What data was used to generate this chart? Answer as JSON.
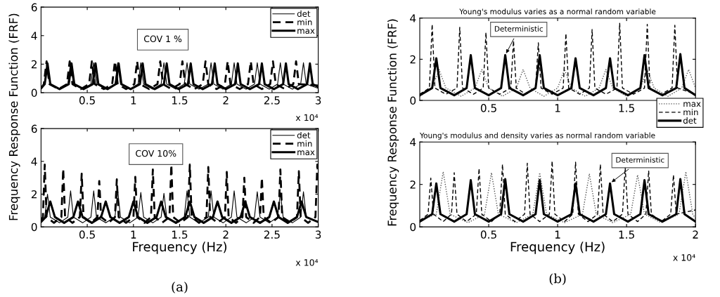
{
  "chart_data": [
    {
      "type": "line",
      "ylabel": "Frequency Response Function (FRF)",
      "xlim": [
        0,
        3
      ],
      "ylim": [
        0,
        6
      ],
      "xticks": [
        0.5,
        1,
        1.5,
        2,
        2.5,
        3
      ],
      "yticks": [
        0,
        2,
        4,
        6
      ],
      "grid": false,
      "legend": "top right",
      "marker": "none",
      "annotations": [
        "COV 1 %",
        "x 10⁴"
      ],
      "series": [
        {
          "name": "det",
          "color": "#000000",
          "line_style": "solid",
          "x": [
            0,
            0.04,
            0.07,
            0.1,
            0.2,
            0.29,
            0.32,
            0.35,
            0.45,
            0.54,
            0.57,
            0.6,
            0.7,
            0.8,
            0.83,
            0.86,
            0.96,
            1.05,
            1.08,
            1.11,
            1.21,
            1.3,
            1.33,
            1.36,
            1.46,
            1.55,
            1.58,
            1.61,
            1.71,
            1.81,
            1.84,
            1.87,
            1.97,
            2.06,
            2.09,
            2.12,
            2.22,
            2.31,
            2.34,
            2.37,
            2.47,
            2.56,
            2.59,
            2.62,
            2.72,
            2.81,
            2.84,
            2.87,
            3
          ],
          "values": [
            0.3,
            0.6,
            2.1,
            0.6,
            0.25,
            0.6,
            2.1,
            0.6,
            0.25,
            0.6,
            2.1,
            0.6,
            0.25,
            0.6,
            2.1,
            0.6,
            0.25,
            0.6,
            2.1,
            0.6,
            0.25,
            0.6,
            2.1,
            0.6,
            0.25,
            0.6,
            2.1,
            0.6,
            0.25,
            0.6,
            2.1,
            0.6,
            0.25,
            0.6,
            2.1,
            0.6,
            0.25,
            0.6,
            2.1,
            0.6,
            0.25,
            0.6,
            2.1,
            0.6,
            0.25,
            0.6,
            2.1,
            0.6,
            0.3
          ]
        },
        {
          "name": "min",
          "color": "#000000",
          "line_style": "dashed",
          "x": [
            0,
            0.03,
            0.06,
            0.09,
            0.19,
            0.28,
            0.31,
            0.34,
            0.43,
            0.52,
            0.55,
            0.58,
            0.68,
            0.77,
            0.8,
            0.83,
            0.92,
            1.01,
            1.04,
            1.07,
            1.17,
            1.26,
            1.29,
            1.32,
            1.41,
            1.5,
            1.53,
            1.56,
            1.66,
            1.75,
            1.78,
            1.81,
            1.9,
            1.99,
            2.02,
            2.05,
            2.15,
            2.24,
            2.27,
            2.3,
            2.39,
            2.48,
            2.51,
            2.54,
            2.64,
            2.73,
            2.76,
            2.79,
            3
          ],
          "values": [
            0.3,
            0.6,
            2.2,
            0.6,
            0.25,
            0.6,
            2.2,
            0.6,
            0.25,
            0.6,
            2.2,
            0.6,
            0.25,
            0.6,
            2.2,
            0.6,
            0.25,
            0.6,
            2.2,
            0.6,
            0.25,
            0.6,
            2.2,
            0.6,
            0.25,
            0.6,
            2.2,
            0.6,
            0.25,
            0.6,
            2.2,
            0.6,
            0.25,
            0.6,
            2.2,
            0.6,
            0.25,
            0.6,
            2.2,
            0.6,
            0.25,
            0.6,
            2.2,
            0.6,
            0.25,
            0.6,
            2.2,
            0.6,
            0.5
          ]
        },
        {
          "name": "max",
          "color": "#000000",
          "line_style": "solid",
          "x": [
            0,
            0.04,
            0.07,
            0.1,
            0.2,
            0.3,
            0.33,
            0.36,
            0.46,
            0.56,
            0.59,
            0.62,
            0.72,
            0.81,
            0.84,
            0.87,
            0.97,
            1.07,
            1.1,
            1.13,
            1.23,
            1.33,
            1.36,
            1.39,
            1.49,
            1.59,
            1.62,
            1.65,
            1.75,
            1.85,
            1.88,
            1.91,
            2.0,
            2.1,
            2.13,
            2.16,
            2.26,
            2.36,
            2.39,
            2.42,
            2.52,
            2.62,
            2.65,
            2.68,
            2.78,
            2.88,
            2.91,
            2.94,
            3
          ],
          "values": [
            0.3,
            0.6,
            2.05,
            0.6,
            0.25,
            0.6,
            2.05,
            0.6,
            0.25,
            0.6,
            2.05,
            0.6,
            0.25,
            0.6,
            2.05,
            0.6,
            0.25,
            0.6,
            2.05,
            0.6,
            0.25,
            0.6,
            2.05,
            0.6,
            0.25,
            0.6,
            2.05,
            0.6,
            0.25,
            0.6,
            2.05,
            0.6,
            0.25,
            0.6,
            2.05,
            0.6,
            0.25,
            0.6,
            2.05,
            0.6,
            0.25,
            0.6,
            2.05,
            0.6,
            0.25,
            0.6,
            2.05,
            0.6,
            0.4
          ]
        }
      ]
    },
    {
      "type": "line",
      "xlabel": "Frequency (Hz)",
      "xlim": [
        0,
        3
      ],
      "ylim": [
        0,
        6
      ],
      "xticks": [
        0.5,
        1,
        1.5,
        2,
        2.5,
        3
      ],
      "yticks": [
        0,
        2,
        4,
        6
      ],
      "grid": false,
      "legend": "top right",
      "marker": "none",
      "annotations": [
        "COV 10%",
        "x 10⁴",
        "(a)"
      ],
      "series": [
        {
          "name": "det",
          "color": "#000000",
          "line_style": "solid",
          "x": [
            0,
            0.04,
            0.07,
            0.1,
            0.2,
            0.29,
            0.32,
            0.35,
            0.45,
            0.54,
            0.57,
            0.6,
            0.7,
            0.8,
            0.83,
            0.86,
            0.96,
            1.05,
            1.08,
            1.11,
            1.21,
            1.3,
            1.33,
            1.36,
            1.46,
            1.55,
            1.58,
            1.61,
            1.71,
            1.81,
            1.84,
            1.87,
            1.97,
            2.06,
            2.09,
            2.12,
            2.22,
            2.31,
            2.34,
            2.37,
            2.47,
            2.56,
            2.59,
            2.62,
            2.72,
            2.81,
            2.84,
            2.87,
            3
          ],
          "values": [
            0.3,
            0.6,
            2.0,
            0.6,
            0.25,
            0.6,
            2.2,
            0.6,
            0.25,
            0.6,
            2.2,
            0.6,
            0.25,
            0.6,
            2.2,
            0.6,
            0.25,
            0.6,
            2.1,
            0.6,
            0.25,
            0.6,
            2.05,
            0.6,
            0.25,
            0.6,
            2.2,
            0.6,
            0.25,
            0.6,
            2.2,
            0.6,
            0.25,
            0.6,
            2.2,
            0.6,
            0.25,
            0.6,
            2.15,
            0.6,
            0.25,
            0.6,
            2.1,
            0.6,
            0.25,
            0.6,
            2.15,
            0.6,
            0.3
          ]
        },
        {
          "name": "min",
          "color": "#000000",
          "line_style": "dashed",
          "x": [
            0,
            0.02,
            0.04,
            0.06,
            0.14,
            0.22,
            0.24,
            0.26,
            0.34,
            0.42,
            0.44,
            0.46,
            0.54,
            0.61,
            0.63,
            0.65,
            0.73,
            0.8,
            0.82,
            0.84,
            0.92,
            1.0,
            1.02,
            1.04,
            1.12,
            1.19,
            1.21,
            1.23,
            1.31,
            1.39,
            1.41,
            1.43,
            1.51,
            1.59,
            1.61,
            1.63,
            1.71,
            1.79,
            1.81,
            1.83,
            1.91,
            1.99,
            2.01,
            2.03,
            2.11,
            2.18,
            2.2,
            2.22,
            2.3,
            2.37,
            2.39,
            2.41,
            2.49,
            2.57,
            2.59,
            2.61,
            2.69,
            2.77,
            2.79,
            2.81,
            2.89,
            2.97,
            2.99,
            3
          ],
          "values": [
            0.4,
            0.6,
            3.8,
            0.6,
            0.25,
            0.6,
            3.55,
            0.6,
            0.25,
            0.6,
            3.25,
            0.6,
            0.25,
            0.6,
            2.8,
            0.6,
            0.25,
            0.6,
            2.9,
            0.6,
            0.25,
            0.6,
            3.05,
            0.6,
            0.25,
            0.6,
            3.5,
            0.6,
            0.25,
            0.6,
            3.8,
            0.6,
            0.25,
            0.6,
            3.8,
            0.6,
            0.25,
            0.6,
            3.65,
            0.6,
            0.25,
            0.6,
            3.35,
            0.6,
            0.25,
            0.6,
            3.0,
            0.6,
            0.25,
            0.6,
            3.0,
            0.6,
            0.25,
            0.6,
            3.5,
            0.6,
            0.25,
            0.6,
            3.4,
            0.6,
            0.25,
            0.6,
            3.8,
            3.0
          ]
        },
        {
          "name": "max",
          "color": "#000000",
          "line_style": "solid",
          "x": [
            0,
            0.05,
            0.1,
            0.15,
            0.25,
            0.35,
            0.4,
            0.45,
            0.55,
            0.65,
            0.7,
            0.75,
            0.85,
            0.95,
            1.0,
            1.05,
            1.15,
            1.25,
            1.3,
            1.35,
            1.46,
            1.56,
            1.61,
            1.66,
            1.76,
            1.86,
            1.91,
            1.96,
            2.06,
            2.16,
            2.21,
            2.26,
            2.37,
            2.47,
            2.52,
            2.57,
            2.67,
            2.77,
            2.82,
            2.87,
            3
          ],
          "values": [
            0.3,
            0.6,
            1.55,
            0.6,
            0.25,
            0.6,
            1.55,
            0.6,
            0.25,
            0.6,
            1.55,
            0.6,
            0.25,
            0.6,
            1.55,
            0.6,
            0.25,
            0.6,
            1.55,
            0.6,
            0.25,
            0.6,
            1.55,
            0.6,
            0.25,
            0.6,
            1.55,
            0.6,
            0.25,
            0.6,
            1.55,
            0.6,
            0.25,
            0.6,
            1.55,
            0.6,
            0.25,
            0.6,
            1.55,
            0.6,
            0.3
          ]
        }
      ]
    },
    {
      "type": "line",
      "title": "Young's modulus varies as a normal random variable",
      "ylabel": "Frequency Response Function (FRF)",
      "xlim": [
        0,
        2
      ],
      "ylim": [
        0,
        4
      ],
      "xticks": [
        0.5,
        1,
        1.5
      ],
      "yticks": [
        0,
        2,
        4
      ],
      "grid": false,
      "legend": "right",
      "marker": "none",
      "annotations": [
        {
          "text": "Deterministic",
          "x": 0.62,
          "y": 2.2
        }
      ],
      "series": [
        {
          "name": "max",
          "color": "#555555",
          "line_style": "dotted",
          "x": [
            0,
            0.09,
            0.14,
            0.19,
            0.3,
            0.4,
            0.45,
            0.5,
            0.6,
            0.7,
            0.75,
            0.8,
            0.9,
            1.0,
            1.05,
            1.1,
            1.2,
            1.3,
            1.35,
            1.4,
            1.5,
            1.6,
            1.65,
            1.7,
            1.8,
            1.9,
            1.95,
            2
          ],
          "values": [
            0.2,
            0.6,
            1.5,
            0.6,
            0.2,
            0.6,
            1.5,
            0.6,
            0.2,
            0.6,
            1.5,
            0.6,
            0.2,
            0.6,
            1.5,
            0.6,
            0.2,
            0.6,
            1.5,
            0.6,
            0.2,
            0.6,
            1.5,
            0.6,
            0.2,
            0.6,
            1.5,
            0.6
          ]
        },
        {
          "name": "min",
          "color": "#000000",
          "line_style": "dashed",
          "x": [
            0,
            0.07,
            0.09,
            0.11,
            0.19,
            0.27,
            0.29,
            0.31,
            0.39,
            0.46,
            0.48,
            0.5,
            0.58,
            0.66,
            0.68,
            0.7,
            0.77,
            0.84,
            0.86,
            0.88,
            0.96,
            1.04,
            1.06,
            1.08,
            1.16,
            1.23,
            1.25,
            1.27,
            1.35,
            1.43,
            1.45,
            1.47,
            1.55,
            1.63,
            1.65,
            1.67,
            1.75,
            1.83,
            1.85,
            1.87,
            2
          ],
          "values": [
            0.3,
            0.6,
            3.7,
            0.6,
            0.3,
            0.6,
            3.55,
            0.6,
            0.3,
            0.6,
            3.3,
            0.6,
            0.3,
            0.6,
            2.9,
            0.6,
            0.3,
            0.6,
            2.8,
            0.6,
            0.3,
            0.6,
            3.25,
            0.6,
            0.3,
            0.6,
            3.45,
            0.6,
            0.3,
            0.6,
            3.75,
            0.6,
            0.3,
            0.6,
            3.7,
            0.6,
            0.3,
            0.6,
            3.65,
            0.6,
            0.3
          ]
        },
        {
          "name": "det",
          "color": "#000000",
          "line_style": "solid",
          "x": [
            0,
            0.09,
            0.12,
            0.15,
            0.25,
            0.34,
            0.37,
            0.4,
            0.5,
            0.59,
            0.62,
            0.65,
            0.75,
            0.84,
            0.87,
            0.9,
            1.0,
            1.1,
            1.13,
            1.16,
            1.26,
            1.35,
            1.38,
            1.41,
            1.51,
            1.6,
            1.63,
            1.66,
            1.76,
            1.86,
            1.89,
            1.92,
            2
          ],
          "values": [
            0.25,
            0.6,
            2.05,
            0.6,
            0.25,
            0.6,
            2.2,
            0.6,
            0.25,
            0.6,
            2.2,
            0.6,
            0.25,
            0.6,
            2.2,
            0.6,
            0.25,
            0.6,
            2.05,
            0.6,
            0.25,
            0.6,
            2.05,
            0.6,
            0.25,
            0.6,
            2.2,
            0.6,
            0.25,
            0.6,
            2.25,
            0.6,
            0.25
          ]
        }
      ]
    },
    {
      "type": "line",
      "title": "Young's modulus and density varies as normal random variable",
      "xlabel": "Frequency (Hz)",
      "xlim": [
        0,
        2
      ],
      "ylim": [
        0,
        4
      ],
      "xticks": [
        0.5,
        1,
        1.5,
        2
      ],
      "yticks": [
        0,
        2,
        4
      ],
      "grid": false,
      "marker": "none",
      "annotations": [
        {
          "text": "Deterministic",
          "x": 1.38,
          "y": 2.05
        },
        "x 10⁴",
        "(b)"
      ],
      "series": [
        {
          "color": "#555555",
          "line_style": "dotted",
          "x": [
            0,
            0.12,
            0.17,
            0.22,
            0.35,
            0.47,
            0.52,
            0.57,
            0.7,
            0.82,
            0.87,
            0.92,
            1.05,
            1.18,
            1.23,
            1.28,
            1.4,
            1.53,
            1.58,
            1.63,
            1.75,
            1.88,
            1.93,
            1.98,
            2
          ],
          "values": [
            0.3,
            0.6,
            2.6,
            0.6,
            0.2,
            0.6,
            2.55,
            0.6,
            0.2,
            0.6,
            2.55,
            0.6,
            0.2,
            0.6,
            2.5,
            0.6,
            0.2,
            0.6,
            2.45,
            0.6,
            0.2,
            0.6,
            2.6,
            0.6,
            0.4
          ]
        },
        {
          "color": "#000000",
          "line_style": "dashed",
          "x": [
            0,
            0.06,
            0.08,
            0.1,
            0.17,
            0.23,
            0.25,
            0.27,
            0.34,
            0.41,
            0.43,
            0.45,
            0.52,
            0.58,
            0.6,
            0.62,
            0.69,
            0.76,
            0.78,
            0.8,
            0.87,
            0.94,
            0.96,
            0.98,
            1.05,
            1.11,
            1.13,
            1.15,
            1.22,
            1.29,
            1.31,
            1.33,
            1.4,
            1.47,
            1.49,
            1.51,
            1.58,
            1.64,
            1.66,
            1.68,
            1.75,
            1.82,
            1.84,
            1.86,
            2
          ],
          "values": [
            0.3,
            0.6,
            2.3,
            0.6,
            0.25,
            0.6,
            2.55,
            0.6,
            0.25,
            0.6,
            2.75,
            0.6,
            0.25,
            0.6,
            2.95,
            0.6,
            0.25,
            0.6,
            3.0,
            0.6,
            0.25,
            0.6,
            3.1,
            0.6,
            0.25,
            0.6,
            3.05,
            0.6,
            0.25,
            0.6,
            2.95,
            0.6,
            0.25,
            0.6,
            2.8,
            0.6,
            0.25,
            0.6,
            2.65,
            0.6,
            0.25,
            0.6,
            2.45,
            0.6,
            0.8
          ]
        },
        {
          "color": "#000000",
          "line_style": "solid",
          "x": [
            0,
            0.09,
            0.12,
            0.15,
            0.25,
            0.34,
            0.37,
            0.4,
            0.5,
            0.59,
            0.62,
            0.65,
            0.75,
            0.84,
            0.87,
            0.9,
            1.0,
            1.1,
            1.13,
            1.16,
            1.26,
            1.35,
            1.38,
            1.41,
            1.51,
            1.6,
            1.63,
            1.66,
            1.76,
            1.86,
            1.89,
            1.92,
            2
          ],
          "values": [
            0.25,
            0.6,
            2.05,
            0.6,
            0.25,
            0.6,
            2.2,
            0.6,
            0.25,
            0.6,
            2.25,
            0.6,
            0.25,
            0.6,
            2.2,
            0.6,
            0.25,
            0.6,
            2.05,
            0.6,
            0.25,
            0.6,
            2.05,
            0.6,
            0.25,
            0.6,
            2.2,
            0.6,
            0.25,
            0.6,
            2.25,
            0.6,
            0.25
          ]
        }
      ]
    }
  ]
}
